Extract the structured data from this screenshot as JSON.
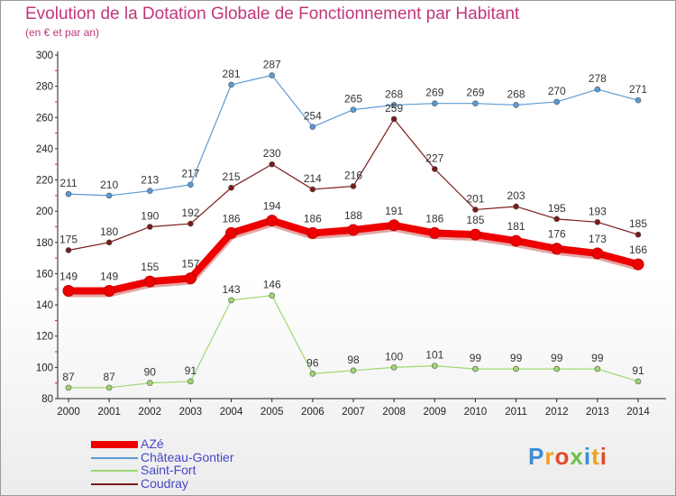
{
  "title": "Evolution de la Dotation Globale de Fonctionnement par Habitant",
  "subtitle": "(en € et par an)",
  "logo": {
    "letters": [
      "P",
      "r",
      "o",
      "x",
      "i",
      "t",
      "i"
    ]
  },
  "chart_data": {
    "type": "line",
    "title": "Evolution de la Dotation Globale de Fonctionnement par Habitant",
    "subtitle": "(en € et par an)",
    "x": [
      "2000",
      "2001",
      "2002",
      "2003",
      "2004",
      "2005",
      "2006",
      "2007",
      "2008",
      "2009",
      "2010",
      "2011",
      "2012",
      "2013",
      "2014"
    ],
    "y_ticks": [
      "80",
      "100",
      "120",
      "140",
      "160",
      "180",
      "200",
      "220",
      "240",
      "260",
      "280",
      "300"
    ],
    "ylim": [
      80,
      300
    ],
    "grid": false,
    "legend_position": "bottom-left",
    "series": [
      {
        "name": "AZé",
        "color": "#ee0000",
        "values": [
          149,
          149,
          155,
          157,
          186,
          194,
          186,
          188,
          191,
          186,
          185,
          181,
          176,
          173,
          166
        ],
        "labels": [
          "149",
          "149",
          "155",
          "157",
          "186",
          "194",
          "186",
          "188",
          "191",
          "186",
          "185",
          "181",
          "176",
          "173",
          "166"
        ]
      },
      {
        "name": "Château-Gontier",
        "color": "#5a9bd5",
        "values": [
          211,
          210,
          213,
          217,
          281,
          287,
          254,
          265,
          268,
          269,
          269,
          268,
          270,
          278,
          271
        ],
        "labels": [
          "211",
          "210",
          "213",
          "217",
          "281",
          "287",
          "254",
          "265",
          "268",
          "269",
          "269",
          "268",
          "270",
          "278",
          "271"
        ]
      },
      {
        "name": "Saint-Fort",
        "color": "#9ed86e",
        "values": [
          87,
          87,
          90,
          91,
          143,
          146,
          96,
          98,
          100,
          101,
          99,
          99,
          99,
          99,
          91
        ],
        "labels": [
          "87",
          "87",
          "90",
          "91",
          "143",
          "146",
          "96",
          "98",
          "100",
          "101",
          "99",
          "99",
          "99",
          "99",
          "91"
        ]
      },
      {
        "name": "Coudray",
        "color": "#7a1a1a",
        "values": [
          175,
          180,
          190,
          192,
          215,
          230,
          214,
          216,
          259,
          227,
          201,
          203,
          195,
          193,
          185
        ],
        "labels": [
          "175",
          "180",
          "190",
          "192",
          "215",
          "230",
          "214",
          "216",
          "259",
          "227",
          "201",
          "203",
          "195",
          "193",
          "185"
        ]
      }
    ]
  }
}
